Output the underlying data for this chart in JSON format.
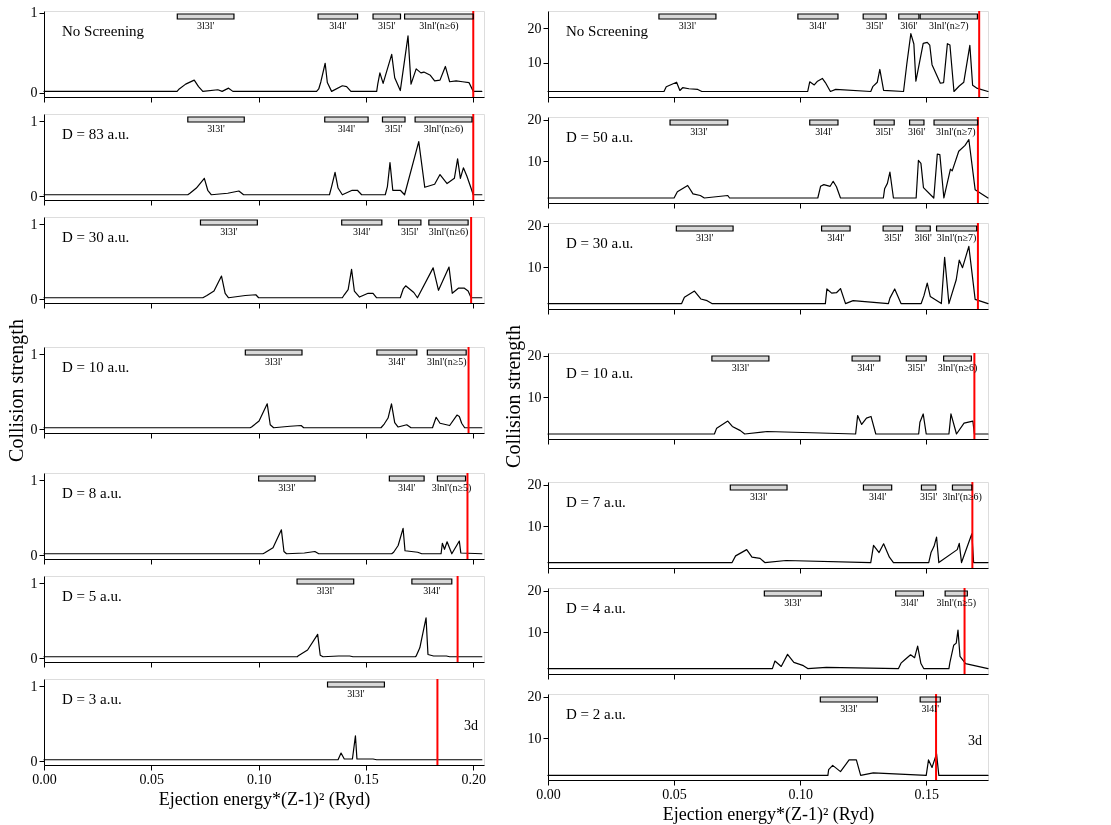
{
  "chart_data": [
    {
      "type": "line",
      "title": "No Screening",
      "xlim": [
        0,
        0.205
      ],
      "ylim": [
        -0.05,
        1.02
      ],
      "yticks": [
        0,
        1
      ],
      "tick_labels": "y",
      "xticks": [
        0,
        0.05,
        0.1,
        0.15,
        0.2
      ],
      "x": [
        0.0,
        0.062,
        0.063,
        0.066,
        0.07,
        0.072,
        0.074,
        0.081,
        0.083,
        0.086,
        0.088,
        0.127,
        0.128,
        0.129,
        0.131,
        0.132,
        0.134,
        0.139,
        0.141,
        0.143,
        0.155,
        0.1555,
        0.1565,
        0.158,
        0.162,
        0.1634,
        0.166,
        0.1696,
        0.171,
        0.1734,
        0.1756,
        0.177,
        0.18,
        0.182,
        0.1845,
        0.187,
        0.189,
        0.192,
        0.195,
        0.198,
        0.2,
        0.204
      ],
      "series": [
        {
          "color": "#000000",
          "values": [
            0.02,
            0.02,
            0.05,
            0.11,
            0.16,
            0.08,
            0.02,
            0.04,
            0.02,
            0.06,
            0.02,
            0.02,
            0.05,
            0.14,
            0.37,
            0.13,
            0.02,
            0.09,
            0.08,
            0.02,
            0.02,
            0.11,
            0.25,
            0.12,
            0.48,
            0.19,
            0.03,
            0.71,
            0.11,
            0.3,
            0.25,
            0.26,
            0.22,
            0.15,
            0.16,
            0.33,
            0.14,
            0.15,
            0.14,
            0.13,
            0.02,
            0.02
          ]
        }
      ],
      "ref_lines": [
        {
          "axis": "x",
          "value": 0.2,
          "color": "#ff0000"
        }
      ],
      "bands": [
        {
          "axis": "x",
          "from": 0.0621,
          "to": 0.0885,
          "label": "3l3l'",
          "color": "#000000"
        },
        {
          "axis": "x",
          "from": 0.1277,
          "to": 0.1461,
          "label": "3l4l'",
          "color": "#000000"
        },
        {
          "axis": "x",
          "from": 0.1533,
          "to": 0.1661,
          "label": "3l5l'",
          "color": "#000000"
        },
        {
          "axis": "x",
          "from": 0.168,
          "to": 0.2,
          "label": "3lnl'(n≥6)",
          "color": "#000000"
        }
      ]
    },
    {
      "type": "line",
      "title": "D = 83 a.u.",
      "xlim": [
        0,
        0.205
      ],
      "ylim": [
        -0.05,
        1.1
      ],
      "yticks": [
        0,
        1
      ],
      "tick_labels": "y",
      "xticks": [
        0,
        0.05,
        0.1,
        0.15,
        0.2
      ],
      "x": [
        0.0,
        0.067,
        0.068,
        0.071,
        0.0747,
        0.0763,
        0.078,
        0.0856,
        0.0908,
        0.093,
        0.133,
        0.134,
        0.1356,
        0.137,
        0.139,
        0.1436,
        0.146,
        0.148,
        0.159,
        0.16,
        0.1612,
        0.1625,
        0.166,
        0.168,
        0.1746,
        0.1774,
        0.182,
        0.1845,
        0.1878,
        0.1912,
        0.1927,
        0.194,
        0.1954,
        0.197,
        0.1987,
        0.2,
        0.204
      ],
      "series": [
        {
          "color": "#000000",
          "values": [
            0.02,
            0.02,
            0.04,
            0.11,
            0.24,
            0.08,
            0.02,
            0.04,
            0.07,
            0.02,
            0.02,
            0.13,
            0.32,
            0.11,
            0.02,
            0.08,
            0.08,
            0.02,
            0.02,
            0.13,
            0.45,
            0.08,
            0.08,
            0.02,
            0.73,
            0.12,
            0.16,
            0.29,
            0.17,
            0.24,
            0.5,
            0.24,
            0.38,
            0.27,
            0.13,
            0.02,
            0.02
          ]
        }
      ],
      "ref_lines": [
        {
          "axis": "x",
          "value": 0.2,
          "color": "#ff0000"
        }
      ],
      "bands": [
        {
          "axis": "x",
          "from": 0.067,
          "to": 0.0933,
          "label": "3l3l'",
          "color": "#000000"
        },
        {
          "axis": "x",
          "from": 0.1308,
          "to": 0.151,
          "label": "3l4l'",
          "color": "#000000"
        },
        {
          "axis": "x",
          "from": 0.1577,
          "to": 0.1682,
          "label": "3l5l'",
          "color": "#000000"
        },
        {
          "axis": "x",
          "from": 0.1729,
          "to": 0.1994,
          "label": "3lnl'(n≥6)",
          "color": "#000000"
        }
      ]
    },
    {
      "type": "line",
      "title": "D = 30 a.u.",
      "xlim": [
        0,
        0.205
      ],
      "ylim": [
        -0.05,
        1.1
      ],
      "yticks": [
        0,
        1
      ],
      "tick_labels": "y",
      "xticks": [
        0,
        0.05,
        0.1,
        0.15,
        0.2
      ],
      "x": [
        0.0,
        0.074,
        0.0759,
        0.0792,
        0.0827,
        0.0844,
        0.086,
        0.0938,
        0.0987,
        0.1,
        0.139,
        0.1399,
        0.1417,
        0.1433,
        0.1446,
        0.147,
        0.151,
        0.1533,
        0.155,
        0.166,
        0.1674,
        0.1685,
        0.1723,
        0.174,
        0.1813,
        0.1838,
        0.1887,
        0.1902,
        0.1932,
        0.1957,
        0.1976,
        0.199,
        0.204
      ],
      "series": [
        {
          "color": "#000000",
          "values": [
            0.02,
            0.02,
            0.05,
            0.11,
            0.31,
            0.08,
            0.02,
            0.05,
            0.06,
            0.02,
            0.02,
            0.06,
            0.13,
            0.4,
            0.11,
            0.03,
            0.08,
            0.08,
            0.02,
            0.02,
            0.14,
            0.18,
            0.09,
            0.02,
            0.42,
            0.12,
            0.43,
            0.08,
            0.15,
            0.15,
            0.11,
            0.02,
            0.02
          ]
        }
      ],
      "ref_lines": [
        {
          "axis": "x",
          "value": 0.199,
          "color": "#ff0000"
        }
      ],
      "bands": [
        {
          "axis": "x",
          "from": 0.0729,
          "to": 0.0994,
          "label": "3l3l'",
          "color": "#000000"
        },
        {
          "axis": "x",
          "from": 0.1387,
          "to": 0.1574,
          "label": "3l4l'",
          "color": "#000000"
        },
        {
          "axis": "x",
          "from": 0.1652,
          "to": 0.1756,
          "label": "3l5l'",
          "color": "#000000"
        },
        {
          "axis": "x",
          "from": 0.1793,
          "to": 0.1976,
          "label": "3lnl'(n≥6)",
          "color": "#000000"
        }
      ]
    },
    {
      "type": "line",
      "title": "D = 10 a.u.",
      "ylabel": "Collision strength",
      "xlim": [
        0,
        0.205
      ],
      "ylim": [
        -0.05,
        1.1
      ],
      "yticks": [
        0,
        1
      ],
      "tick_labels": "y",
      "xticks": [
        0,
        0.05,
        0.1,
        0.15,
        0.2
      ],
      "x": [
        0.0,
        0.096,
        0.0967,
        0.1002,
        0.104,
        0.1054,
        0.107,
        0.1146,
        0.1198,
        0.121,
        0.157,
        0.1585,
        0.1603,
        0.1619,
        0.1634,
        0.165,
        0.169,
        0.171,
        0.181,
        0.1827,
        0.1845,
        0.189,
        0.1924,
        0.1935,
        0.1946,
        0.196,
        0.204
      ],
      "series": [
        {
          "color": "#000000",
          "values": [
            0.02,
            0.02,
            0.03,
            0.11,
            0.34,
            0.06,
            0.02,
            0.04,
            0.05,
            0.02,
            0.02,
            0.07,
            0.15,
            0.34,
            0.09,
            0.03,
            0.06,
            0.02,
            0.02,
            0.16,
            0.08,
            0.05,
            0.19,
            0.17,
            0.08,
            0.02,
            0.02
          ]
        }
      ],
      "ref_lines": [
        {
          "axis": "x",
          "value": 0.1978,
          "color": "#ff0000"
        }
      ],
      "bands": [
        {
          "axis": "x",
          "from": 0.0938,
          "to": 0.1202,
          "label": "3l3l'",
          "color": "#000000"
        },
        {
          "axis": "x",
          "from": 0.1551,
          "to": 0.1737,
          "label": "3l4l'",
          "color": "#000000"
        },
        {
          "axis": "x",
          "from": 0.1786,
          "to": 0.1967,
          "label": "3lnl'(n≥5)",
          "color": "#000000"
        }
      ]
    },
    {
      "type": "line",
      "title": "D = 8 a.u.",
      "xlim": [
        0,
        0.205
      ],
      "ylim": [
        -0.05,
        1.1
      ],
      "yticks": [
        0,
        1
      ],
      "tick_labels": "y",
      "xticks": [
        0,
        0.05,
        0.1,
        0.15,
        0.2
      ],
      "x": [
        0.0,
        0.102,
        0.1027,
        0.1067,
        0.1106,
        0.1118,
        0.113,
        0.1213,
        0.1262,
        0.128,
        0.162,
        0.1629,
        0.165,
        0.1673,
        0.1682,
        0.1741,
        0.176,
        0.185,
        0.1856,
        0.1866,
        0.1878,
        0.19,
        0.1935,
        0.1942,
        0.204
      ],
      "series": [
        {
          "color": "#000000",
          "values": [
            0.02,
            0.02,
            0.03,
            0.1,
            0.34,
            0.05,
            0.02,
            0.03,
            0.05,
            0.02,
            0.02,
            0.04,
            0.13,
            0.36,
            0.06,
            0.04,
            0.02,
            0.02,
            0.16,
            0.08,
            0.18,
            0.02,
            0.19,
            0.03,
            0.02
          ]
        }
      ],
      "ref_lines": [
        {
          "axis": "x",
          "value": 0.1973,
          "color": "#ff0000"
        }
      ],
      "bands": [
        {
          "axis": "x",
          "from": 0.1,
          "to": 0.1263,
          "label": "3l3l'",
          "color": "#000000"
        },
        {
          "axis": "x",
          "from": 0.1609,
          "to": 0.1771,
          "label": "3l4l'",
          "color": "#000000"
        },
        {
          "axis": "x",
          "from": 0.1833,
          "to": 0.1964,
          "label": "3lnl'(n≥5)",
          "color": "#000000"
        }
      ]
    },
    {
      "type": "line",
      "title": "D = 5 a.u.",
      "xlim": [
        0,
        0.205
      ],
      "ylim": [
        -0.05,
        1.1
      ],
      "yticks": [
        0,
        1
      ],
      "tick_labels": "y",
      "xticks": [
        0,
        0.05,
        0.1,
        0.15,
        0.2
      ],
      "x": [
        0.0,
        0.118,
        0.1183,
        0.1228,
        0.1275,
        0.1287,
        0.13,
        0.1373,
        0.1424,
        0.144,
        0.173,
        0.1734,
        0.1751,
        0.178,
        0.1789,
        0.1815,
        0.1875,
        0.189,
        0.204
      ],
      "series": [
        {
          "color": "#000000",
          "values": [
            0.02,
            0.02,
            0.03,
            0.11,
            0.32,
            0.04,
            0.02,
            0.03,
            0.03,
            0.02,
            0.02,
            0.03,
            0.14,
            0.54,
            0.05,
            0.03,
            0.03,
            0.02,
            0.02
          ]
        }
      ],
      "ref_lines": [
        {
          "axis": "x",
          "value": 0.1927,
          "color": "#ff0000"
        }
      ],
      "bands": [
        {
          "axis": "x",
          "from": 0.1179,
          "to": 0.1443,
          "label": "3l3l'",
          "color": "#000000"
        },
        {
          "axis": "x",
          "from": 0.1714,
          "to": 0.19,
          "label": "3l4l'",
          "color": "#000000"
        }
      ]
    },
    {
      "type": "line",
      "title": "D = 3 a.u.",
      "xlabel": "Ejection energy*(Z-1)² (Ryd)",
      "xlim": [
        0,
        0.205
      ],
      "ylim": [
        -0.05,
        1.1
      ],
      "yticks": [
        0,
        1
      ],
      "xticks": [
        {
          "value": 0,
          "label": "0.00"
        },
        {
          "value": 0.05,
          "label": "0.05"
        },
        {
          "value": 0.1,
          "label": "0.10"
        },
        {
          "value": 0.15,
          "label": "0.15"
        },
        {
          "value": 0.2,
          "label": "0.20"
        }
      ],
      "x": [
        0.0,
        0.137,
        0.1384,
        0.1399,
        0.1437,
        0.1451,
        0.1458,
        0.1533,
        0.155,
        0.204
      ],
      "series": [
        {
          "color": "#000000",
          "values": [
            0.02,
            0.02,
            0.11,
            0.03,
            0.03,
            0.34,
            0.03,
            0.03,
            0.02,
            0.02
          ]
        }
      ],
      "ref_lines": [
        {
          "axis": "x",
          "value": 0.1833,
          "color": "#ff0000"
        }
      ],
      "bands": [
        {
          "axis": "x",
          "from": 0.1321,
          "to": 0.1586,
          "label": "3l3l'",
          "color": "#000000"
        }
      ],
      "annotations": [
        "3d"
      ]
    },
    {
      "type": "line",
      "title": "No Screening",
      "xlim": [
        0,
        0.1745
      ],
      "ylim": [
        0,
        25
      ],
      "yticks": [
        10,
        20
      ],
      "tick_labels": "y",
      "xticks": [
        0,
        0.05,
        0.1,
        0.15
      ],
      "x": [
        0.0,
        0.046,
        0.0469,
        0.051,
        0.0523,
        0.0534,
        0.0559,
        0.0594,
        0.061,
        0.103,
        0.1038,
        0.1056,
        0.1069,
        0.1088,
        0.11,
        0.112,
        0.1141,
        0.128,
        0.1288,
        0.1306,
        0.1316,
        0.1331,
        0.141,
        0.1423,
        0.1439,
        0.1451,
        0.1459,
        0.1488,
        0.1504,
        0.1514,
        0.1523,
        0.1556,
        0.1569,
        0.1584,
        0.1594,
        0.161,
        0.1631,
        0.1649,
        0.1673,
        0.1684,
        0.17,
        0.1745
      ],
      "series": [
        {
          "color": "#000000",
          "values": [
            1.6,
            1.6,
            3.0,
            4.3,
            1.9,
            2.7,
            2.4,
            2.2,
            1.6,
            1.6,
            4.4,
            3.5,
            4.6,
            5.4,
            4.2,
            1.6,
            2.2,
            1.6,
            3.0,
            4.3,
            8.0,
            1.9,
            1.6,
            9.6,
            18.4,
            15.4,
            4.6,
            15.6,
            15.9,
            15.1,
            9.4,
            4.0,
            4.2,
            15.5,
            15.1,
            1.6,
            3.2,
            4.3,
            15.0,
            3.4,
            2.6,
            1.6
          ]
        }
      ],
      "ref_lines": [
        {
          "axis": "x",
          "value": 0.171,
          "color": "#ff0000"
        }
      ],
      "bands": [
        {
          "axis": "x",
          "from": 0.044,
          "to": 0.0666,
          "label": "3l3l'",
          "color": "#000000"
        },
        {
          "axis": "x",
          "from": 0.0991,
          "to": 0.115,
          "label": "3l4l'",
          "color": "#000000"
        },
        {
          "axis": "x",
          "from": 0.125,
          "to": 0.1341,
          "label": "3l5l'",
          "color": "#000000"
        },
        {
          "axis": "x",
          "from": 0.1391,
          "to": 0.1471,
          "label": "3l6l'",
          "color": "#000000"
        },
        {
          "axis": "x",
          "from": 0.1476,
          "to": 0.1703,
          "label": "3lnl'(n≥7)",
          "color": "#000000"
        }
      ]
    },
    {
      "type": "line",
      "title": "D = 50 a.u.",
      "xlim": [
        0,
        0.1745
      ],
      "ylim": [
        0,
        20.6
      ],
      "yticks": [
        10,
        20
      ],
      "tick_labels": "y",
      "xticks": [
        0,
        0.05,
        0.1,
        0.15
      ],
      "x": [
        0.0,
        0.05,
        0.0513,
        0.0554,
        0.0575,
        0.0604,
        0.062,
        0.0713,
        0.072,
        0.107,
        0.1081,
        0.1094,
        0.1119,
        0.1131,
        0.1144,
        0.116,
        0.133,
        0.1335,
        0.1346,
        0.1356,
        0.137,
        0.146,
        0.1469,
        0.1479,
        0.1489,
        0.153,
        0.1544,
        0.1554,
        0.157,
        0.1596,
        0.1603,
        0.1629,
        0.1654,
        0.1669,
        0.1694,
        0.1745
      ],
      "series": [
        {
          "color": "#000000",
          "values": [
            1.2,
            1.2,
            2.7,
            4.2,
            2.2,
            1.8,
            1.2,
            1.8,
            1.2,
            1.2,
            4.0,
            4.4,
            4.0,
            5.2,
            3.9,
            1.2,
            1.2,
            3.4,
            4.7,
            7.4,
            1.2,
            1.2,
            10.2,
            9.5,
            3.7,
            1.2,
            11.7,
            11.6,
            1.2,
            8.1,
            7.7,
            12.4,
            13.8,
            15.2,
            3.2,
            1.2
          ]
        }
      ],
      "ref_lines": [
        {
          "axis": "x",
          "value": 0.1705,
          "color": "#ff0000"
        }
      ],
      "bands": [
        {
          "axis": "x",
          "from": 0.0484,
          "to": 0.0713,
          "label": "3l3l'",
          "color": "#000000"
        },
        {
          "axis": "x",
          "from": 0.1038,
          "to": 0.115,
          "label": "3l4l'",
          "color": "#000000"
        },
        {
          "axis": "x",
          "from": 0.1294,
          "to": 0.1373,
          "label": "3l5l'",
          "color": "#000000"
        },
        {
          "axis": "x",
          "from": 0.1434,
          "to": 0.1491,
          "label": "3l6l'",
          "color": "#000000"
        },
        {
          "axis": "x",
          "from": 0.1531,
          "to": 0.1704,
          "label": "3lnl'(n≥7)",
          "color": "#000000"
        }
      ]
    },
    {
      "type": "line",
      "title": "D = 30 a.u.",
      "xlim": [
        0,
        0.1745
      ],
      "ylim": [
        0,
        20.6
      ],
      "yticks": [
        10,
        20
      ],
      "tick_labels": "y",
      "xticks": [
        0,
        0.05,
        0.1,
        0.15
      ],
      "x": [
        0.0,
        0.053,
        0.0541,
        0.0581,
        0.0606,
        0.0631,
        0.065,
        0.11,
        0.1106,
        0.1125,
        0.1144,
        0.116,
        0.118,
        0.121,
        0.135,
        0.1356,
        0.1375,
        0.1388,
        0.14,
        0.148,
        0.1491,
        0.1504,
        0.1516,
        0.156,
        0.1573,
        0.159,
        0.1619,
        0.1631,
        0.1644,
        0.1669,
        0.1694,
        0.1745
      ],
      "series": [
        {
          "color": "#000000",
          "values": [
            1.3,
            1.3,
            2.8,
            4.3,
            2.4,
            2.0,
            1.3,
            1.3,
            4.8,
            3.8,
            3.9,
            4.9,
            1.3,
            2.0,
            1.3,
            2.6,
            4.8,
            3.0,
            1.3,
            1.3,
            3.2,
            6.2,
            3.0,
            1.3,
            12.4,
            1.3,
            7.0,
            11.7,
            9.9,
            15.0,
            2.3,
            1.3
          ]
        }
      ],
      "ref_lines": [
        {
          "axis": "x",
          "value": 0.1705,
          "color": "#ff0000"
        }
      ],
      "bands": [
        {
          "axis": "x",
          "from": 0.0509,
          "to": 0.0734,
          "label": "3l3l'",
          "color": "#000000"
        },
        {
          "axis": "x",
          "from": 0.1085,
          "to": 0.1198,
          "label": "3l4l'",
          "color": "#000000"
        },
        {
          "axis": "x",
          "from": 0.1329,
          "to": 0.1406,
          "label": "3l5l'",
          "color": "#000000"
        },
        {
          "axis": "x",
          "from": 0.146,
          "to": 0.1516,
          "label": "3l6l'",
          "color": "#000000"
        },
        {
          "axis": "x",
          "from": 0.1541,
          "to": 0.17,
          "label": "3lnl'(n≥7)",
          "color": "#000000"
        }
      ]
    },
    {
      "type": "line",
      "title": "D = 10 a.u.",
      "ylabel": "Collision strength",
      "xlim": [
        0,
        0.1745
      ],
      "ylim": [
        0,
        20.6
      ],
      "yticks": [
        10,
        20
      ],
      "tick_labels": "y",
      "xticks": [
        0,
        0.05,
        0.1,
        0.15
      ],
      "x": [
        0.0,
        0.066,
        0.0669,
        0.0713,
        0.0731,
        0.0763,
        0.078,
        0.0869,
        0.122,
        0.1228,
        0.1244,
        0.1263,
        0.1281,
        0.13,
        0.147,
        0.1475,
        0.1488,
        0.15,
        0.159,
        0.1594,
        0.1598,
        0.162,
        0.165,
        0.1685,
        0.1691,
        0.1745
      ],
      "series": [
        {
          "color": "#000000",
          "values": [
            1.2,
            1.2,
            2.6,
            4.3,
            3.0,
            2.0,
            1.2,
            1.8,
            1.2,
            5.6,
            3.5,
            5.0,
            5.4,
            1.2,
            1.2,
            4.0,
            6.0,
            1.2,
            1.2,
            3.5,
            6.0,
            1.2,
            3.8,
            4.3,
            1.2,
            1.2
          ]
        }
      ],
      "ref_lines": [
        {
          "axis": "x",
          "value": 0.1691,
          "color": "#ff0000"
        }
      ],
      "bands": [
        {
          "axis": "x",
          "from": 0.065,
          "to": 0.0876,
          "label": "3l3l'",
          "color": "#000000"
        },
        {
          "axis": "x",
          "from": 0.1206,
          "to": 0.1316,
          "label": "3l4l'",
          "color": "#000000"
        },
        {
          "axis": "x",
          "from": 0.1421,
          "to": 0.15,
          "label": "3l5l'",
          "color": "#000000"
        },
        {
          "axis": "x",
          "from": 0.1569,
          "to": 0.1679,
          "label": "3lnl'(n≥6)",
          "color": "#000000"
        }
      ]
    },
    {
      "type": "line",
      "title": "D = 7 a.u.",
      "xlim": [
        0,
        0.1745
      ],
      "ylim": [
        0,
        20.6
      ],
      "yticks": [
        10,
        20
      ],
      "tick_labels": "y",
      "xticks": [
        0,
        0.05,
        0.1,
        0.15
      ],
      "x": [
        0.0,
        0.073,
        0.0744,
        0.0788,
        0.0809,
        0.0841,
        0.086,
        0.0944,
        0.128,
        0.1291,
        0.1313,
        0.1331,
        0.1354,
        0.137,
        0.151,
        0.1519,
        0.1531,
        0.1541,
        0.155,
        0.1623,
        0.1631,
        0.164,
        0.1681,
        0.1688,
        0.1745
      ],
      "series": [
        {
          "color": "#000000",
          "values": [
            1.3,
            1.3,
            2.9,
            4.4,
            2.6,
            2.3,
            1.3,
            1.8,
            1.3,
            5.4,
            3.7,
            5.8,
            2.6,
            1.3,
            1.3,
            3.7,
            5.2,
            7.4,
            1.3,
            4.4,
            5.9,
            1.3,
            8.2,
            1.3,
            1.3
          ]
        }
      ],
      "ref_lines": [
        {
          "axis": "x",
          "value": 0.1683,
          "color": "#ff0000"
        }
      ],
      "bands": [
        {
          "axis": "x",
          "from": 0.0723,
          "to": 0.0948,
          "label": "3l3l'",
          "color": "#000000"
        },
        {
          "axis": "x",
          "from": 0.1251,
          "to": 0.1363,
          "label": "3l4l'",
          "color": "#000000"
        },
        {
          "axis": "x",
          "from": 0.1481,
          "to": 0.1538,
          "label": "3l5l'",
          "color": "#000000"
        },
        {
          "axis": "x",
          "from": 0.1604,
          "to": 0.1681,
          "label": "3lnl'(n≥6)",
          "color": "#000000"
        }
      ]
    },
    {
      "type": "line",
      "title": "D = 4 a.u.",
      "xlim": [
        0,
        0.1745
      ],
      "ylim": [
        0,
        20.6
      ],
      "yticks": [
        10,
        20
      ],
      "tick_labels": "y",
      "xticks": [
        0,
        0.05,
        0.1,
        0.15
      ],
      "x": [
        0.0,
        0.089,
        0.09,
        0.0925,
        0.095,
        0.0975,
        0.1013,
        0.103,
        0.1104,
        0.139,
        0.14,
        0.1415,
        0.1438,
        0.1454,
        0.1466,
        0.1479,
        0.149,
        0.159,
        0.1594,
        0.1609,
        0.1619,
        0.1626,
        0.1634,
        0.1656,
        0.1745
      ],
      "series": [
        {
          "color": "#000000",
          "values": [
            1.3,
            1.3,
            3.1,
            1.8,
            4.7,
            2.8,
            2.0,
            1.3,
            1.6,
            1.3,
            2.6,
            3.4,
            4.6,
            3.9,
            6.7,
            2.5,
            1.3,
            1.3,
            2.8,
            6.9,
            7.4,
            10.5,
            4.2,
            2.5,
            1.3
          ]
        }
      ],
      "ref_lines": [
        {
          "axis": "x",
          "value": 0.1652,
          "color": "#ff0000"
        }
      ],
      "bands": [
        {
          "axis": "x",
          "from": 0.0858,
          "to": 0.1084,
          "label": "3l3l'",
          "color": "#000000"
        },
        {
          "axis": "x",
          "from": 0.1379,
          "to": 0.1489,
          "label": "3l4l'",
          "color": "#000000"
        },
        {
          "axis": "x",
          "from": 0.1575,
          "to": 0.1663,
          "label": "3lnl'(n≥5)",
          "color": "#000000"
        }
      ]
    },
    {
      "type": "line",
      "title": "D = 2 a.u.",
      "xlabel": "Ejection energy*(Z-1)² (Ryd)",
      "xlim": [
        0,
        0.1745
      ],
      "ylim": [
        0,
        20.6
      ],
      "yticks": [
        10,
        20
      ],
      "xticks": [
        {
          "value": 0,
          "label": "0.00"
        },
        {
          "value": 0.05,
          "label": "0.05"
        },
        {
          "value": 0.1,
          "label": "0.10"
        },
        {
          "value": 0.15,
          "label": "0.15"
        }
      ],
      "x": [
        0.0,
        0.111,
        0.1113,
        0.1129,
        0.116,
        0.1194,
        0.1223,
        0.124,
        0.129,
        0.15,
        0.1509,
        0.1523,
        0.1541,
        0.155,
        0.1745
      ],
      "series": [
        {
          "color": "#000000",
          "values": [
            1.1,
            1.1,
            2.5,
            3.5,
            2.0,
            4.8,
            4.8,
            1.1,
            1.7,
            1.1,
            4.8,
            3.0,
            6.3,
            1.1,
            1.1
          ]
        }
      ],
      "ref_lines": [
        {
          "axis": "x",
          "value": 0.1539,
          "color": "#ff0000"
        }
      ],
      "bands": [
        {
          "axis": "x",
          "from": 0.108,
          "to": 0.1306,
          "label": "3l3l'",
          "color": "#000000"
        },
        {
          "axis": "x",
          "from": 0.1476,
          "to": 0.1556,
          "label": "3l4l'",
          "color": "#000000"
        }
      ],
      "annotations": [
        "3d"
      ]
    }
  ]
}
